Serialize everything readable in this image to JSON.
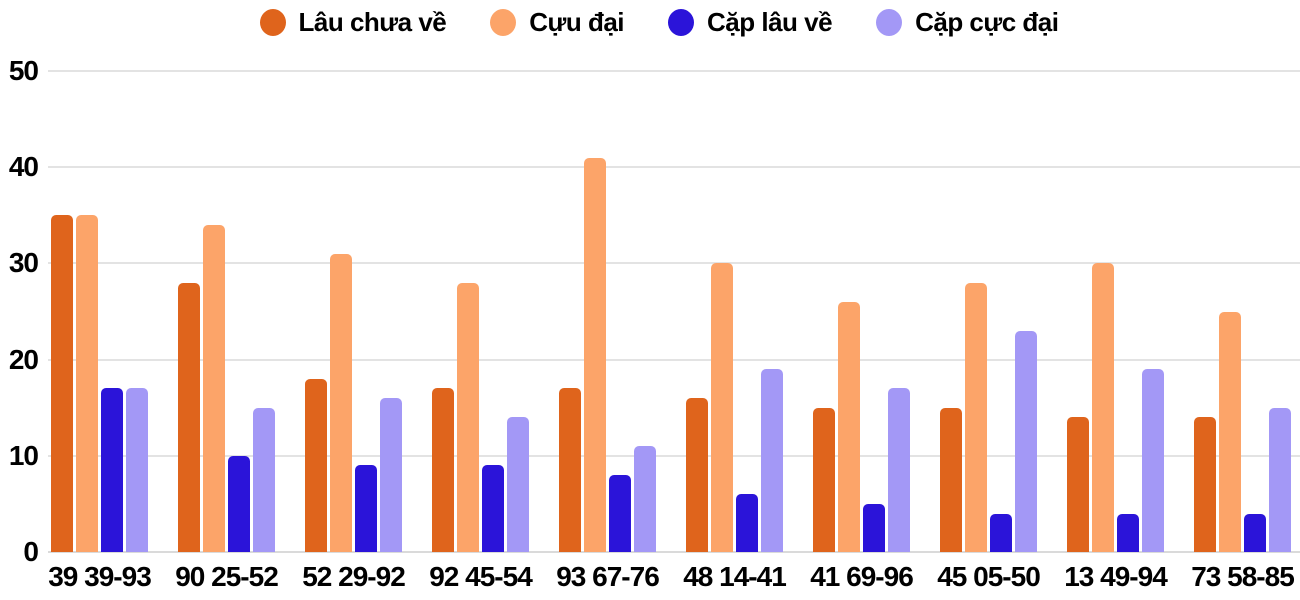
{
  "chart_data": {
    "type": "bar",
    "title": "",
    "xlabel": "",
    "ylabel": "",
    "categories": [
      "39 39-93",
      "90 25-52",
      "52 29-92",
      "92 45-54",
      "93 67-76",
      "48 14-41",
      "41 69-96",
      "45 05-50",
      "13 49-94",
      "73 58-85"
    ],
    "series": [
      {
        "name": "Lâu chưa về",
        "color": "#DF641C",
        "values": [
          35,
          28,
          18,
          17,
          17,
          16,
          15,
          15,
          14,
          14
        ]
      },
      {
        "name": "Cựu đại",
        "color": "#FCA469",
        "values": [
          35,
          34,
          31,
          28,
          41,
          30,
          26,
          28,
          30,
          25
        ]
      },
      {
        "name": "Cặp lâu về",
        "color": "#2B14D9",
        "values": [
          17,
          10,
          9,
          9,
          8,
          6,
          5,
          4,
          4,
          4
        ]
      },
      {
        "name": "Cặp cực đại",
        "color": "#A398F6",
        "values": [
          17,
          15,
          16,
          14,
          11,
          19,
          17,
          23,
          19,
          15
        ]
      }
    ],
    "ylim": [
      0,
      50
    ],
    "yticks": [
      0,
      10,
      20,
      30,
      40,
      50
    ],
    "grid": true,
    "legend_position": "top-center"
  },
  "colors": {
    "grid": "#E3E3E3",
    "baseline": "#DADADA",
    "text": "#000000",
    "background": "#FFFFFF"
  }
}
